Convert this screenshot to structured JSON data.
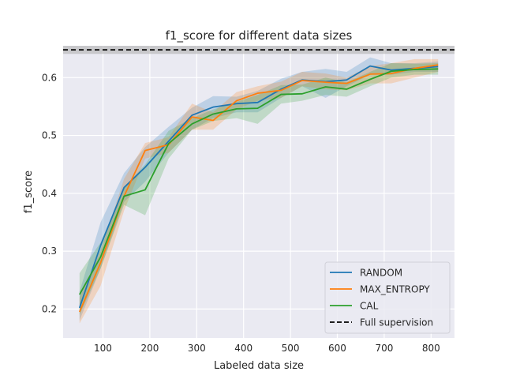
{
  "chart_data": {
    "type": "line",
    "title": "f1_score for different data sizes",
    "xlabel": "Labeled data size",
    "ylabel": "f1_score",
    "xlim": [
      15,
      850
    ],
    "ylim": [
      0.15,
      0.655
    ],
    "x_ticks": [
      100,
      200,
      300,
      400,
      500,
      600,
      700,
      800
    ],
    "y_ticks": [
      0.2,
      0.3,
      0.4,
      0.5,
      0.6
    ],
    "x_tick_labels": [
      "100",
      "200",
      "300",
      "400",
      "500",
      "600",
      "700",
      "800"
    ],
    "y_tick_labels": [
      "0.2",
      "0.3",
      "0.4",
      "0.5",
      "0.6"
    ],
    "grid": true,
    "legend_position": "bottom-right",
    "series": [
      {
        "name": "RANDOM",
        "color": "#1f77b4",
        "x": [
          50,
          95,
          145,
          190,
          240,
          290,
          335,
          385,
          430,
          480,
          525,
          575,
          620,
          670,
          715,
          765,
          815
        ],
        "y": [
          0.202,
          0.31,
          0.41,
          0.445,
          0.49,
          0.535,
          0.549,
          0.555,
          0.557,
          0.58,
          0.596,
          0.593,
          0.596,
          0.62,
          0.613,
          0.616,
          0.619
        ],
        "lower": [
          0.18,
          0.27,
          0.385,
          0.42,
          0.47,
          0.51,
          0.53,
          0.54,
          0.54,
          0.565,
          0.585,
          0.565,
          0.585,
          0.605,
          0.605,
          0.61,
          0.61
        ],
        "upper": [
          0.23,
          0.35,
          0.435,
          0.48,
          0.515,
          0.548,
          0.568,
          0.567,
          0.577,
          0.598,
          0.61,
          0.615,
          0.61,
          0.635,
          0.625,
          0.625,
          0.628
        ]
      },
      {
        "name": "MAX_ENTROPY",
        "color": "#ff7f0e",
        "x": [
          50,
          95,
          145,
          190,
          240,
          290,
          335,
          385,
          430,
          480,
          525,
          575,
          620,
          670,
          715,
          765,
          815
        ],
        "y": [
          0.195,
          0.28,
          0.395,
          0.474,
          0.484,
          0.532,
          0.526,
          0.56,
          0.573,
          0.578,
          0.595,
          0.592,
          0.59,
          0.606,
          0.607,
          0.616,
          0.622
        ],
        "lower": [
          0.175,
          0.24,
          0.37,
          0.46,
          0.47,
          0.51,
          0.51,
          0.545,
          0.56,
          0.565,
          0.585,
          0.58,
          0.578,
          0.59,
          0.59,
          0.6,
          0.61
        ],
        "upper": [
          0.22,
          0.3,
          0.425,
          0.487,
          0.497,
          0.555,
          0.54,
          0.575,
          0.585,
          0.593,
          0.61,
          0.607,
          0.6,
          0.62,
          0.625,
          0.632,
          0.632
        ]
      },
      {
        "name": "CAL",
        "color": "#2ca02c",
        "x": [
          50,
          95,
          145,
          190,
          240,
          290,
          335,
          385,
          430,
          480,
          525,
          575,
          620,
          670,
          715,
          765,
          815
        ],
        "y": [
          0.225,
          0.29,
          0.395,
          0.406,
          0.486,
          0.52,
          0.537,
          0.546,
          0.547,
          0.571,
          0.572,
          0.584,
          0.58,
          0.597,
          0.611,
          0.614,
          0.615
        ],
        "lower": [
          0.19,
          0.27,
          0.38,
          0.362,
          0.46,
          0.51,
          0.525,
          0.53,
          0.52,
          0.555,
          0.56,
          0.57,
          0.567,
          0.585,
          0.6,
          0.605,
          0.605
        ],
        "upper": [
          0.262,
          0.315,
          0.41,
          0.45,
          0.508,
          0.53,
          0.545,
          0.558,
          0.57,
          0.587,
          0.588,
          0.6,
          0.592,
          0.61,
          0.625,
          0.624,
          0.625
        ]
      }
    ],
    "reference_line": {
      "name": "Full supervision",
      "y": 0.648,
      "lower": 0.641,
      "upper": 0.655,
      "color": "#000000",
      "style": "dashed"
    }
  }
}
